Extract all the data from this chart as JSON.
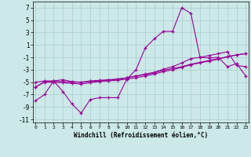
{
  "xlabel": "Windchill (Refroidissement éolien,°C)",
  "background_color": "#cce8e8",
  "grid_color": "#aacccc",
  "line_color": "#990099",
  "x_values": [
    0,
    1,
    2,
    3,
    4,
    5,
    6,
    7,
    8,
    9,
    10,
    11,
    12,
    13,
    14,
    15,
    16,
    17,
    18,
    19,
    20,
    21,
    22,
    23
  ],
  "series1": [
    -8.0,
    -7.0,
    -4.8,
    -6.5,
    -8.5,
    -10.0,
    -7.8,
    -7.5,
    -7.5,
    -7.5,
    -4.5,
    -3.0,
    0.5,
    2.0,
    3.2,
    3.2,
    7.0,
    6.1,
    -1.0,
    -1.1,
    -1.0,
    -2.5,
    -2.0,
    -4.0
  ],
  "series2": [
    -5.0,
    -4.8,
    -4.8,
    -4.6,
    -4.9,
    -5.0,
    -4.9,
    -4.8,
    -4.7,
    -4.5,
    -4.3,
    -4.0,
    -3.7,
    -3.4,
    -2.9,
    -2.5,
    -1.9,
    -1.2,
    -1.0,
    -0.7,
    -0.4,
    -0.1,
    -2.3,
    -2.5
  ],
  "series3": [
    -5.8,
    -4.9,
    -4.9,
    -4.9,
    -5.0,
    -5.0,
    -4.8,
    -4.7,
    -4.6,
    -4.5,
    -4.3,
    -4.0,
    -3.8,
    -3.5,
    -3.1,
    -2.8,
    -2.5,
    -2.1,
    -1.8,
    -1.5,
    -1.2,
    -0.9,
    -0.6,
    -0.4
  ],
  "series4": [
    -5.8,
    -5.0,
    -5.0,
    -5.1,
    -5.2,
    -5.3,
    -5.1,
    -4.9,
    -4.8,
    -4.7,
    -4.5,
    -4.3,
    -4.0,
    -3.7,
    -3.3,
    -3.0,
    -2.6,
    -2.2,
    -1.9,
    -1.6,
    -1.3,
    -0.9,
    -0.6,
    -0.4
  ],
  "ylim": [
    -11.5,
    8.0
  ],
  "xlim": [
    -0.3,
    23.3
  ],
  "yticks": [
    -11,
    -9,
    -7,
    -5,
    -3,
    -1,
    1,
    3,
    5,
    7
  ],
  "xticks": [
    0,
    1,
    2,
    3,
    4,
    5,
    6,
    7,
    8,
    9,
    10,
    11,
    12,
    13,
    14,
    15,
    16,
    17,
    18,
    19,
    20,
    21,
    22,
    23
  ]
}
